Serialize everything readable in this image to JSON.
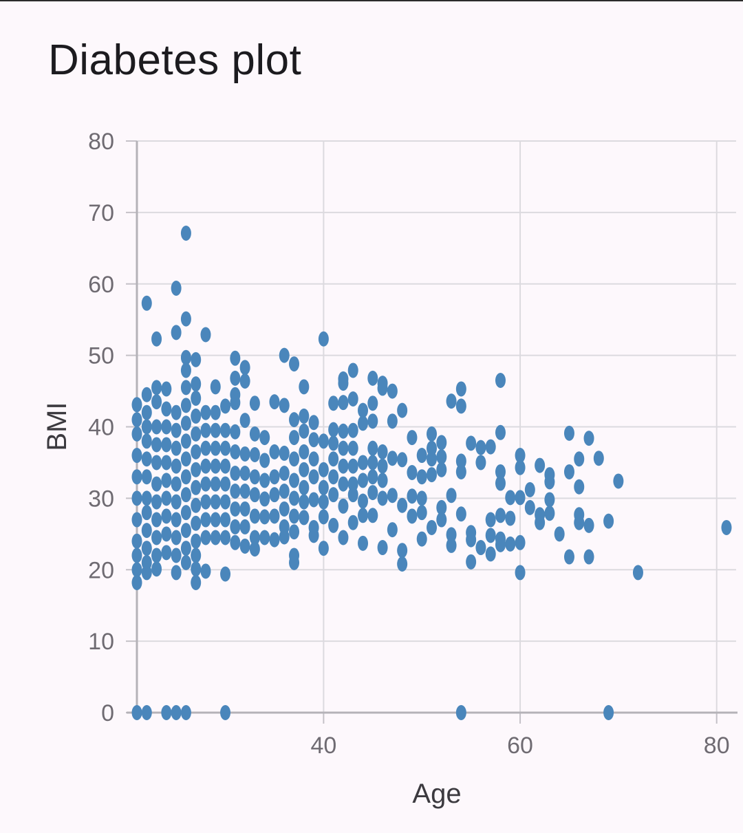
{
  "title": "Diabetes plot",
  "chart_data": {
    "type": "scatter",
    "title": "Diabetes plot",
    "xlabel": "Age",
    "ylabel": "BMI",
    "xlim": [
      21,
      81
    ],
    "ylim": [
      0,
      80
    ],
    "x_ticks": [
      40,
      60,
      80
    ],
    "y_ticks": [
      0,
      10,
      20,
      30,
      40,
      50,
      60,
      70,
      80
    ],
    "grid": true,
    "point_color": "#4a86bb",
    "points": [
      [
        21,
        43.1
      ],
      [
        21,
        41
      ],
      [
        21,
        39
      ],
      [
        21,
        36
      ],
      [
        21,
        33
      ],
      [
        21,
        30
      ],
      [
        21,
        27
      ],
      [
        21,
        24
      ],
      [
        21,
        22
      ],
      [
        21,
        20
      ],
      [
        21,
        18.2
      ],
      [
        21,
        0
      ],
      [
        22,
        44.5
      ],
      [
        22,
        42
      ],
      [
        22,
        40
      ],
      [
        22,
        38
      ],
      [
        22,
        35.5
      ],
      [
        22,
        33
      ],
      [
        22,
        30
      ],
      [
        22,
        28
      ],
      [
        22,
        25.5
      ],
      [
        22,
        23
      ],
      [
        22,
        21
      ],
      [
        22,
        19.6
      ],
      [
        22,
        57.3
      ],
      [
        22,
        0
      ],
      [
        23,
        45.5
      ],
      [
        23,
        43.5
      ],
      [
        23,
        40
      ],
      [
        23,
        37.5
      ],
      [
        23,
        35
      ],
      [
        23,
        32
      ],
      [
        23,
        29.5
      ],
      [
        23,
        27
      ],
      [
        23,
        24.5
      ],
      [
        23,
        22
      ],
      [
        23,
        20.1
      ],
      [
        23,
        52.3
      ],
      [
        24,
        45.3
      ],
      [
        24,
        42.5
      ],
      [
        24,
        40
      ],
      [
        24,
        37.5
      ],
      [
        24,
        35
      ],
      [
        24,
        32.5
      ],
      [
        24,
        30
      ],
      [
        24,
        27.5
      ],
      [
        24,
        25
      ],
      [
        24,
        22.4
      ],
      [
        24,
        0
      ],
      [
        25,
        42
      ],
      [
        25,
        39.5
      ],
      [
        25,
        37
      ],
      [
        25,
        34.5
      ],
      [
        25,
        32
      ],
      [
        25,
        29.5
      ],
      [
        25,
        27
      ],
      [
        25,
        24.5
      ],
      [
        25,
        22
      ],
      [
        25,
        19.6
      ],
      [
        25,
        53.2
      ],
      [
        25,
        59.4
      ],
      [
        25,
        0
      ],
      [
        26,
        49.7
      ],
      [
        26,
        47.9
      ],
      [
        26,
        45.5
      ],
      [
        26,
        43
      ],
      [
        26,
        40.5
      ],
      [
        26,
        38
      ],
      [
        26,
        35.5
      ],
      [
        26,
        33
      ],
      [
        26,
        30.5
      ],
      [
        26,
        28
      ],
      [
        26,
        25.5
      ],
      [
        26,
        23
      ],
      [
        26,
        21
      ],
      [
        26,
        55.1
      ],
      [
        26,
        67.1
      ],
      [
        26,
        0
      ],
      [
        27,
        49.4
      ],
      [
        27,
        46
      ],
      [
        27,
        44
      ],
      [
        27,
        41.5
      ],
      [
        27,
        39
      ],
      [
        27,
        36.5
      ],
      [
        27,
        34
      ],
      [
        27,
        31.5
      ],
      [
        27,
        29
      ],
      [
        27,
        26.5
      ],
      [
        27,
        24
      ],
      [
        27,
        22
      ],
      [
        27,
        20.1
      ],
      [
        27,
        18.2
      ],
      [
        28,
        42
      ],
      [
        28,
        39.5
      ],
      [
        28,
        37
      ],
      [
        28,
        34.5
      ],
      [
        28,
        32
      ],
      [
        28,
        29.5
      ],
      [
        28,
        27
      ],
      [
        28,
        24.5
      ],
      [
        28,
        19.8
      ],
      [
        28,
        52.9
      ],
      [
        29,
        45.6
      ],
      [
        29,
        42
      ],
      [
        29,
        39.5
      ],
      [
        29,
        37
      ],
      [
        29,
        34.5
      ],
      [
        29,
        32
      ],
      [
        29,
        29.5
      ],
      [
        29,
        27
      ],
      [
        29,
        24.5
      ],
      [
        30,
        42.9
      ],
      [
        30,
        39.5
      ],
      [
        30,
        37
      ],
      [
        30,
        34.5
      ],
      [
        30,
        32
      ],
      [
        30,
        29.5
      ],
      [
        30,
        27
      ],
      [
        30,
        24.5
      ],
      [
        30,
        19.4
      ],
      [
        30,
        0
      ],
      [
        31,
        49.6
      ],
      [
        31,
        46.8
      ],
      [
        31,
        44.5
      ],
      [
        31,
        43.4
      ],
      [
        31,
        39.3
      ],
      [
        31,
        36.5
      ],
      [
        31,
        33.5
      ],
      [
        31,
        31
      ],
      [
        31,
        28.5
      ],
      [
        31,
        26
      ],
      [
        31,
        23.8
      ],
      [
        32,
        48.3
      ],
      [
        32,
        46.4
      ],
      [
        32,
        40.9
      ],
      [
        32,
        36.2
      ],
      [
        32,
        33.5
      ],
      [
        32,
        31
      ],
      [
        32,
        28.5
      ],
      [
        32,
        26
      ],
      [
        32,
        23.3
      ],
      [
        33,
        43.3
      ],
      [
        33,
        39
      ],
      [
        33,
        36.1
      ],
      [
        33,
        33
      ],
      [
        33,
        30.5
      ],
      [
        33,
        27.5
      ],
      [
        33,
        24.5
      ],
      [
        33,
        22.9
      ],
      [
        34,
        38.5
      ],
      [
        34,
        35.3
      ],
      [
        34,
        32.5
      ],
      [
        34,
        29.9
      ],
      [
        34,
        27.4
      ],
      [
        34,
        24.5
      ],
      [
        35,
        43.5
      ],
      [
        35,
        36.5
      ],
      [
        35,
        33
      ],
      [
        35,
        30.5
      ],
      [
        35,
        27.5
      ],
      [
        35,
        24.2
      ],
      [
        36,
        50
      ],
      [
        36,
        43
      ],
      [
        36,
        36.3
      ],
      [
        36,
        33.5
      ],
      [
        36,
        31
      ],
      [
        36,
        28.5
      ],
      [
        36,
        26
      ],
      [
        36,
        24.6
      ],
      [
        37,
        48.8
      ],
      [
        37,
        41
      ],
      [
        37,
        38.5
      ],
      [
        37,
        35.5
      ],
      [
        37,
        32.5
      ],
      [
        37,
        30
      ],
      [
        37,
        27.5
      ],
      [
        37,
        25.3
      ],
      [
        37,
        22
      ],
      [
        37,
        21
      ],
      [
        38,
        45.6
      ],
      [
        38,
        41.5
      ],
      [
        38,
        39.4
      ],
      [
        38,
        36.5
      ],
      [
        38,
        34
      ],
      [
        38,
        31.5
      ],
      [
        38,
        29.5
      ],
      [
        38,
        27.3
      ],
      [
        39,
        40.6
      ],
      [
        39,
        38.2
      ],
      [
        39,
        35.5
      ],
      [
        39,
        33
      ],
      [
        39,
        29.8
      ],
      [
        39,
        25.9
      ],
      [
        39,
        24.8
      ],
      [
        40,
        52.3
      ],
      [
        40,
        38
      ],
      [
        40,
        34
      ],
      [
        40,
        31.5
      ],
      [
        40,
        29.5
      ],
      [
        40,
        27.4
      ],
      [
        40,
        23
      ],
      [
        41,
        43.3
      ],
      [
        41,
        39.6
      ],
      [
        41,
        37.7
      ],
      [
        41,
        35.5
      ],
      [
        41,
        33
      ],
      [
        41,
        30.5
      ],
      [
        41,
        26.2
      ],
      [
        42,
        46.7
      ],
      [
        42,
        46.1
      ],
      [
        42,
        43.4
      ],
      [
        42,
        39.4
      ],
      [
        42,
        37
      ],
      [
        42,
        34.5
      ],
      [
        42,
        32
      ],
      [
        42,
        28.9
      ],
      [
        42,
        24.5
      ],
      [
        43,
        47.9
      ],
      [
        43,
        43.9
      ],
      [
        43,
        39.5
      ],
      [
        43,
        37
      ],
      [
        43,
        34.5
      ],
      [
        43,
        32
      ],
      [
        43,
        30.5
      ],
      [
        43,
        26.6
      ],
      [
        44,
        42.3
      ],
      [
        44,
        40.5
      ],
      [
        44,
        35
      ],
      [
        44,
        32.5
      ],
      [
        44,
        29.6
      ],
      [
        44,
        27.6
      ],
      [
        44,
        23.7
      ],
      [
        45,
        46.8
      ],
      [
        45,
        43.3
      ],
      [
        45,
        40.8
      ],
      [
        45,
        37
      ],
      [
        45,
        35
      ],
      [
        45,
        33
      ],
      [
        45,
        30.8
      ],
      [
        45,
        27.6
      ],
      [
        46,
        46.1
      ],
      [
        46,
        45.4
      ],
      [
        46,
        36.5
      ],
      [
        46,
        34.5
      ],
      [
        46,
        32.5
      ],
      [
        46,
        30
      ],
      [
        46,
        23.1
      ],
      [
        47,
        45
      ],
      [
        47,
        40.8
      ],
      [
        47,
        35.6
      ],
      [
        47,
        30.4
      ],
      [
        47,
        25.6
      ],
      [
        48,
        42.3
      ],
      [
        48,
        35.4
      ],
      [
        48,
        29
      ],
      [
        48,
        22.7
      ],
      [
        48,
        20.8
      ],
      [
        49,
        38.5
      ],
      [
        49,
        33.6
      ],
      [
        49,
        30.3
      ],
      [
        49,
        27.5
      ],
      [
        50,
        36
      ],
      [
        50,
        33
      ],
      [
        50,
        30
      ],
      [
        50,
        28
      ],
      [
        50,
        24.3
      ],
      [
        51,
        39
      ],
      [
        51,
        37
      ],
      [
        51,
        35.5
      ],
      [
        51,
        33.3
      ],
      [
        51,
        25.9
      ],
      [
        52,
        37.8
      ],
      [
        52,
        35.8
      ],
      [
        52,
        34
      ],
      [
        52,
        28.7
      ],
      [
        52,
        27
      ],
      [
        53,
        43.6
      ],
      [
        53,
        30.4
      ],
      [
        53,
        24.9
      ],
      [
        53,
        23.4
      ],
      [
        54,
        45.3
      ],
      [
        54,
        42.9
      ],
      [
        54,
        35.2
      ],
      [
        54,
        33.7
      ],
      [
        54,
        27.8
      ],
      [
        54,
        0
      ],
      [
        55,
        37.7
      ],
      [
        55,
        25.2
      ],
      [
        55,
        24.2
      ],
      [
        55,
        21.1
      ],
      [
        56,
        37.1
      ],
      [
        56,
        35
      ],
      [
        56,
        23.1
      ],
      [
        57,
        37.2
      ],
      [
        57,
        27
      ],
      [
        57,
        24.8
      ],
      [
        57,
        22.2
      ],
      [
        58,
        46.5
      ],
      [
        58,
        39.2
      ],
      [
        58,
        33.7
      ],
      [
        58,
        32.1
      ],
      [
        58,
        27.6
      ],
      [
        58,
        24.3
      ],
      [
        58,
        23.5
      ],
      [
        59,
        30.1
      ],
      [
        59,
        27.2
      ],
      [
        59,
        23.6
      ],
      [
        60,
        36
      ],
      [
        60,
        34.3
      ],
      [
        60,
        30.1
      ],
      [
        60,
        23.8
      ],
      [
        60,
        19.6
      ],
      [
        61,
        31.2
      ],
      [
        61,
        28.7
      ],
      [
        62,
        34.6
      ],
      [
        62,
        27.7
      ],
      [
        62,
        26.6
      ],
      [
        63,
        33.3
      ],
      [
        63,
        32.3
      ],
      [
        63,
        29.8
      ],
      [
        63,
        27.9
      ],
      [
        64,
        25
      ],
      [
        65,
        39.1
      ],
      [
        65,
        33.7
      ],
      [
        65,
        21.8
      ],
      [
        66,
        35.5
      ],
      [
        66,
        31.6
      ],
      [
        66,
        27.7
      ],
      [
        66,
        26.6
      ],
      [
        67,
        38.4
      ],
      [
        67,
        26.2
      ],
      [
        67,
        21.8
      ],
      [
        68,
        35.6
      ],
      [
        69,
        26.8
      ],
      [
        69,
        0
      ],
      [
        70,
        32.4
      ],
      [
        72,
        19.6
      ],
      [
        81,
        25.9
      ]
    ]
  }
}
